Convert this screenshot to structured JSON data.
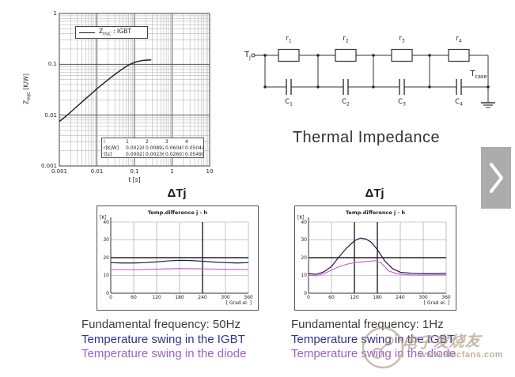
{
  "meta": {
    "section_title": "Thermal Impedance"
  },
  "colors": {
    "igbt_text": "#38328c",
    "diode_text": "#9a63c9",
    "freq_text": "#3d3d3d",
    "igbt_curve": "#1b1b4f",
    "diode_curve": "#c963c9",
    "zth_curve": "#1a1a1a",
    "grid_minor": "#aaaaaa",
    "grid_major": "#555555",
    "emphasis_line": "#222222",
    "chevron_bg": "#acacac",
    "watermark": "#b29e87"
  },
  "zth_display": {
    "legend_base": "Z",
    "legend_sub": "thJC",
    "legend_rest": " : IGBT",
    "ylabel_base": "Z",
    "ylabel_sub": "thJC",
    "ylabel_units": " [K/W]"
  },
  "chart_data": [
    {
      "id": "zth_igbt",
      "type": "line",
      "legend": [
        "ZthJC : IGBT"
      ],
      "xlabel": "t [s]",
      "ylabel": "ZthJC [K/W]",
      "xscale": "log",
      "yscale": "log",
      "xlim": [
        0.001,
        10
      ],
      "ylim": [
        0.001,
        1
      ],
      "xticks": [
        "0.001",
        "0.01",
        "0,1",
        "1",
        "10"
      ],
      "yticks": [
        "1",
        "0.1",
        "0.01",
        "0.001"
      ],
      "grid": "log-both",
      "x": [
        0.001,
        0.0015,
        0.002,
        0.003,
        0.005,
        0.007,
        0.01,
        0.015,
        0.02,
        0.03,
        0.05,
        0.07,
        0.1,
        0.13,
        0.17,
        0.22,
        0.28
      ],
      "y": [
        0.0075,
        0.0095,
        0.0115,
        0.015,
        0.021,
        0.026,
        0.033,
        0.042,
        0.05,
        0.063,
        0.083,
        0.097,
        0.109,
        0.115,
        0.119,
        0.121,
        0.122
      ],
      "foster_table": {
        "header": [
          "i",
          "1",
          "2",
          "3",
          "4"
        ],
        "rows": [
          {
            "label": "r[K/W]",
            "values": [
              "0.00228",
              "0.00892",
              "0.06045",
              "0.05044"
            ]
          },
          {
            "label": "t[s]",
            "values": [
              "0.00021187",
              "0.002364",
              "0.02601",
              "0.05490"
            ]
          }
        ]
      }
    },
    {
      "id": "dtj_50hz",
      "type": "line",
      "title": "ΔTj",
      "inner_title": "Temp.difference j - h",
      "xlabel": "[ Grad el. ]",
      "ylabel": "[K]",
      "xlim": [
        0,
        360
      ],
      "ylim": [
        0,
        40
      ],
      "xticks": [
        0,
        60,
        120,
        180,
        240,
        300,
        360
      ],
      "yticks": [
        0,
        10,
        20,
        30,
        40
      ],
      "emphasis": {
        "h": [
          20
        ],
        "v": [
          240
        ]
      },
      "series": [
        {
          "name": "IGBT",
          "color": "#1b1b4f",
          "x": [
            0,
            30,
            60,
            90,
            120,
            150,
            180,
            210,
            240,
            270,
            300,
            330,
            360
          ],
          "y": [
            17.2,
            17.0,
            17.0,
            17.2,
            17.6,
            18.2,
            18.5,
            18.4,
            18.0,
            17.5,
            17.2,
            17.0,
            17.2
          ]
        },
        {
          "name": "diode",
          "color": "#c963c9",
          "x": [
            0,
            60,
            120,
            180,
            240,
            300,
            360
          ],
          "y": [
            13.3,
            13.2,
            13.5,
            13.9,
            13.7,
            13.4,
            13.3
          ]
        }
      ]
    },
    {
      "id": "dtj_1hz",
      "type": "line",
      "title": "ΔTj",
      "inner_title": "Temp.difference j - h",
      "xlabel": "[ Grad el. ]",
      "ylabel": "[K]",
      "xlim": [
        0,
        360
      ],
      "ylim": [
        0,
        40
      ],
      "xticks": [
        0,
        60,
        120,
        180,
        240,
        300,
        360
      ],
      "yticks": [
        0,
        10,
        20,
        30,
        40
      ],
      "emphasis": {
        "h": [
          20
        ],
        "v": [
          120,
          180
        ]
      },
      "series": [
        {
          "name": "IGBT",
          "color": "#1b1b4f",
          "x": [
            0,
            20,
            40,
            60,
            80,
            100,
            120,
            135,
            150,
            165,
            180,
            200,
            220,
            240,
            270,
            300,
            330,
            360
          ],
          "y": [
            11,
            10.6,
            12,
            15,
            20.5,
            25.5,
            29.5,
            31,
            30.5,
            28.5,
            24.5,
            18,
            13.8,
            11.8,
            11.2,
            11,
            11,
            11.2
          ]
        },
        {
          "name": "diode",
          "color": "#c963c9",
          "x": [
            0,
            20,
            40,
            60,
            80,
            100,
            120,
            140,
            160,
            175,
            190,
            210,
            230,
            250,
            270,
            300,
            330,
            360
          ],
          "y": [
            10.2,
            9.8,
            11,
            13,
            15,
            16.3,
            17.2,
            17.6,
            18,
            18.3,
            17,
            12.5,
            11,
            10.5,
            10.3,
            10.2,
            10.3,
            10.4
          ]
        }
      ]
    }
  ],
  "circuit": {
    "input_label": {
      "base": "T",
      "sub": "j"
    },
    "output_label": {
      "base": "T",
      "sub": "case"
    },
    "resistors": [
      {
        "base": "r",
        "sub": "1"
      },
      {
        "base": "r",
        "sub": "2"
      },
      {
        "base": "r",
        "sub": "3"
      },
      {
        "base": "r",
        "sub": "4"
      }
    ],
    "capacitors": [
      {
        "base": "C",
        "sub": "1"
      },
      {
        "base": "C",
        "sub": "2"
      },
      {
        "base": "C",
        "sub": "3"
      },
      {
        "base": "C",
        "sub": "4"
      }
    ]
  },
  "captions": {
    "left": {
      "frequency": "Fundamental frequency: 50Hz",
      "igbt": "Temperature swing in the IGBT",
      "diode": "Temperature swing in the diode"
    },
    "right": {
      "frequency": "Fundamental frequency: 1Hz",
      "igbt": "Temperature swing in the IGBT",
      "diode": "Temperature swing in the diode"
    }
  },
  "nav": {
    "next_icon": "chevron-right"
  },
  "watermark": {
    "cn": "电子发烧友",
    "url": "www.elecfans.com"
  }
}
